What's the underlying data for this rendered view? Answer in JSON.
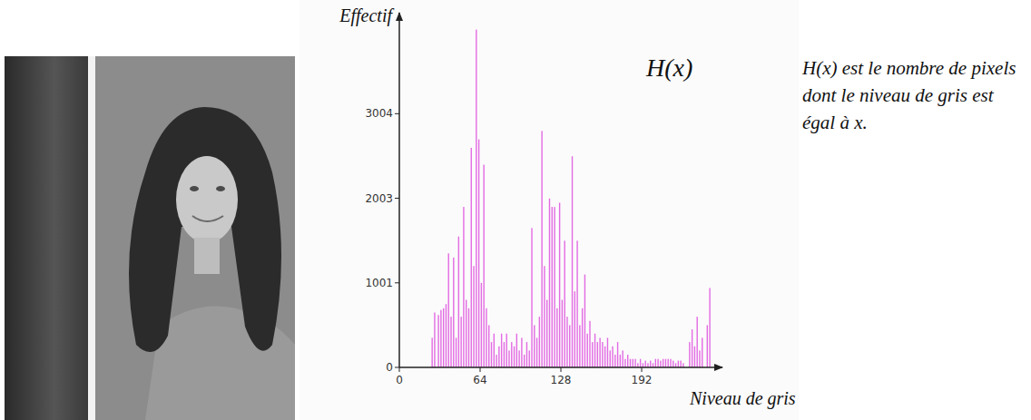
{
  "chart_data": {
    "type": "bar",
    "title": "H(x)",
    "y_label": "Effectif",
    "x_label": "Niveau de gris",
    "annotation": "H(x) est le nombre de pixels dont le niveau de gris est égal à x.",
    "color": "#e36be3",
    "xlim": [
      0,
      256
    ],
    "xticks": [
      0,
      64,
      128,
      192
    ],
    "ylim": [
      0,
      4200
    ],
    "yticks": [
      0,
      1001,
      2003,
      3004
    ],
    "x": [
      26,
      28,
      31,
      33,
      35,
      37,
      39,
      41,
      43,
      45,
      47,
      49,
      51,
      53,
      55,
      57,
      59,
      61,
      63,
      65,
      67,
      69,
      71,
      73,
      75,
      77,
      79,
      81,
      83,
      85,
      87,
      89,
      91,
      93,
      95,
      97,
      99,
      101,
      103,
      105,
      107,
      109,
      111,
      113,
      115,
      117,
      119,
      121,
      123,
      125,
      127,
      129,
      131,
      133,
      135,
      137,
      139,
      141,
      143,
      145,
      147,
      149,
      151,
      153,
      155,
      157,
      159,
      161,
      163,
      165,
      167,
      169,
      171,
      173,
      175,
      177,
      179,
      181,
      183,
      185,
      187,
      189,
      191,
      193,
      195,
      197,
      199,
      201,
      203,
      205,
      207,
      209,
      211,
      213,
      215,
      217,
      219,
      221,
      223,
      225,
      230,
      232,
      234,
      236,
      238,
      240,
      244,
      246
    ],
    "values": [
      350,
      650,
      620,
      680,
      700,
      750,
      1350,
      600,
      1300,
      350,
      1550,
      600,
      1900,
      800,
      700,
      2600,
      1200,
      4000,
      2700,
      1000,
      2400,
      700,
      500,
      300,
      400,
      150,
      250,
      400,
      300,
      400,
      200,
      300,
      250,
      400,
      200,
      350,
      150,
      300,
      200,
      1650,
      500,
      350,
      600,
      2800,
      1200,
      800,
      2000,
      1900,
      1900,
      700,
      1950,
      800,
      1500,
      600,
      500,
      2500,
      900,
      1500,
      500,
      700,
      1100,
      400,
      550,
      300,
      400,
      300,
      350,
      300,
      250,
      350,
      200,
      250,
      150,
      300,
      150,
      200,
      100,
      150,
      100,
      100,
      100,
      50,
      100,
      50,
      80,
      50,
      80,
      50,
      100,
      100,
      80,
      100,
      100,
      100,
      100,
      80,
      50,
      80,
      80,
      50,
      300,
      450,
      250,
      600,
      200,
      350,
      500,
      940
    ]
  }
}
